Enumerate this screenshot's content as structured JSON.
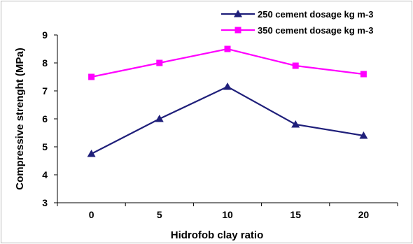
{
  "chart_data": {
    "type": "line",
    "title": "",
    "xlabel": "Hidrofob clay ratio",
    "ylabel": "Compressive strenght (MPa)",
    "categories": [
      "0",
      "5",
      "10",
      "15",
      "20"
    ],
    "ylim": [
      3,
      9
    ],
    "yticks": [
      "3",
      "4",
      "5",
      "6",
      "7",
      "8",
      "9"
    ],
    "grid": false,
    "legend_position": "top-right",
    "series": [
      {
        "name": "250 cement dosage kg m-3",
        "values": [
          4.75,
          6.0,
          7.15,
          5.8,
          5.4
        ],
        "color": "#1f1f7a",
        "marker": "triangle"
      },
      {
        "name": "350 cement dosage kg m-3",
        "values": [
          7.5,
          8.0,
          8.5,
          7.9,
          7.6
        ],
        "color": "#ff00ff",
        "marker": "square"
      }
    ]
  }
}
